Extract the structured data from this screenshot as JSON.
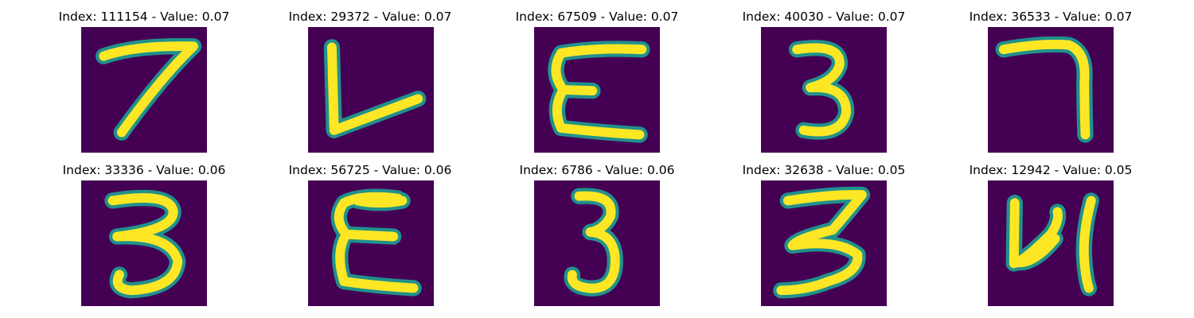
{
  "panels": [
    {
      "title": "Index: 111154 - Value: 0.07",
      "glyph": "7"
    },
    {
      "title": "Index: 29372 - Value: 0.07",
      "glyph": "L"
    },
    {
      "title": "Index: 67509 - Value: 0.07",
      "glyph": "E"
    },
    {
      "title": "Index: 40030 - Value: 0.07",
      "glyph": "3"
    },
    {
      "title": "Index: 36533 - Value: 0.07",
      "glyph": "7"
    },
    {
      "title": "Index: 33336 - Value: 0.06",
      "glyph": "3"
    },
    {
      "title": "Index: 56725 - Value: 0.06",
      "glyph": "E"
    },
    {
      "title": "Index: 6786 - Value: 0.06",
      "glyph": "3"
    },
    {
      "title": "Index: 32638 - Value: 0.05",
      "glyph": "3"
    },
    {
      "title": "Index: 12942 - Value: 0.05",
      "glyph": "4"
    }
  ],
  "colors": {
    "background": "#440154",
    "stroke_edge": "#21918c",
    "stroke_core": "#fde725"
  }
}
